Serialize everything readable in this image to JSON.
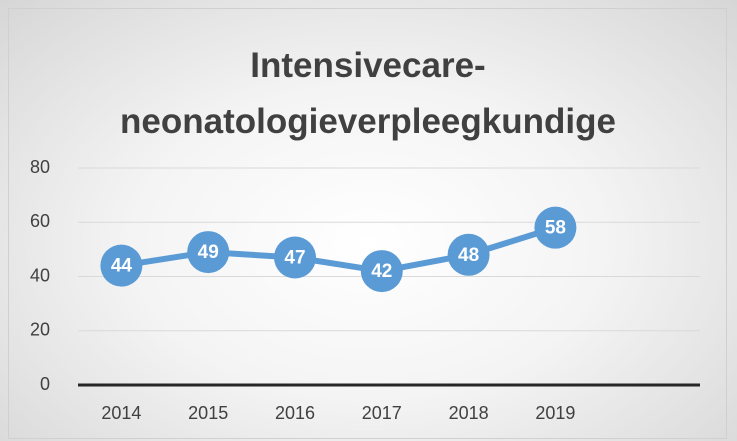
{
  "chart_data": {
    "type": "line",
    "title": "Intensivecare-neonatologieverpleegkundige",
    "categories": [
      "2014",
      "2015",
      "2016",
      "2017",
      "2018",
      "2019",
      null
    ],
    "series": [
      {
        "name": "Intensivecare-neonatologieverpleegkundige",
        "color": "#5b9bd5",
        "values": [
          44,
          49,
          47,
          42,
          48,
          58,
          null
        ]
      }
    ],
    "ylim": [
      0,
      80
    ],
    "yticks": [
      0,
      20,
      40,
      60,
      80
    ],
    "grid": true,
    "data_labels": true
  }
}
